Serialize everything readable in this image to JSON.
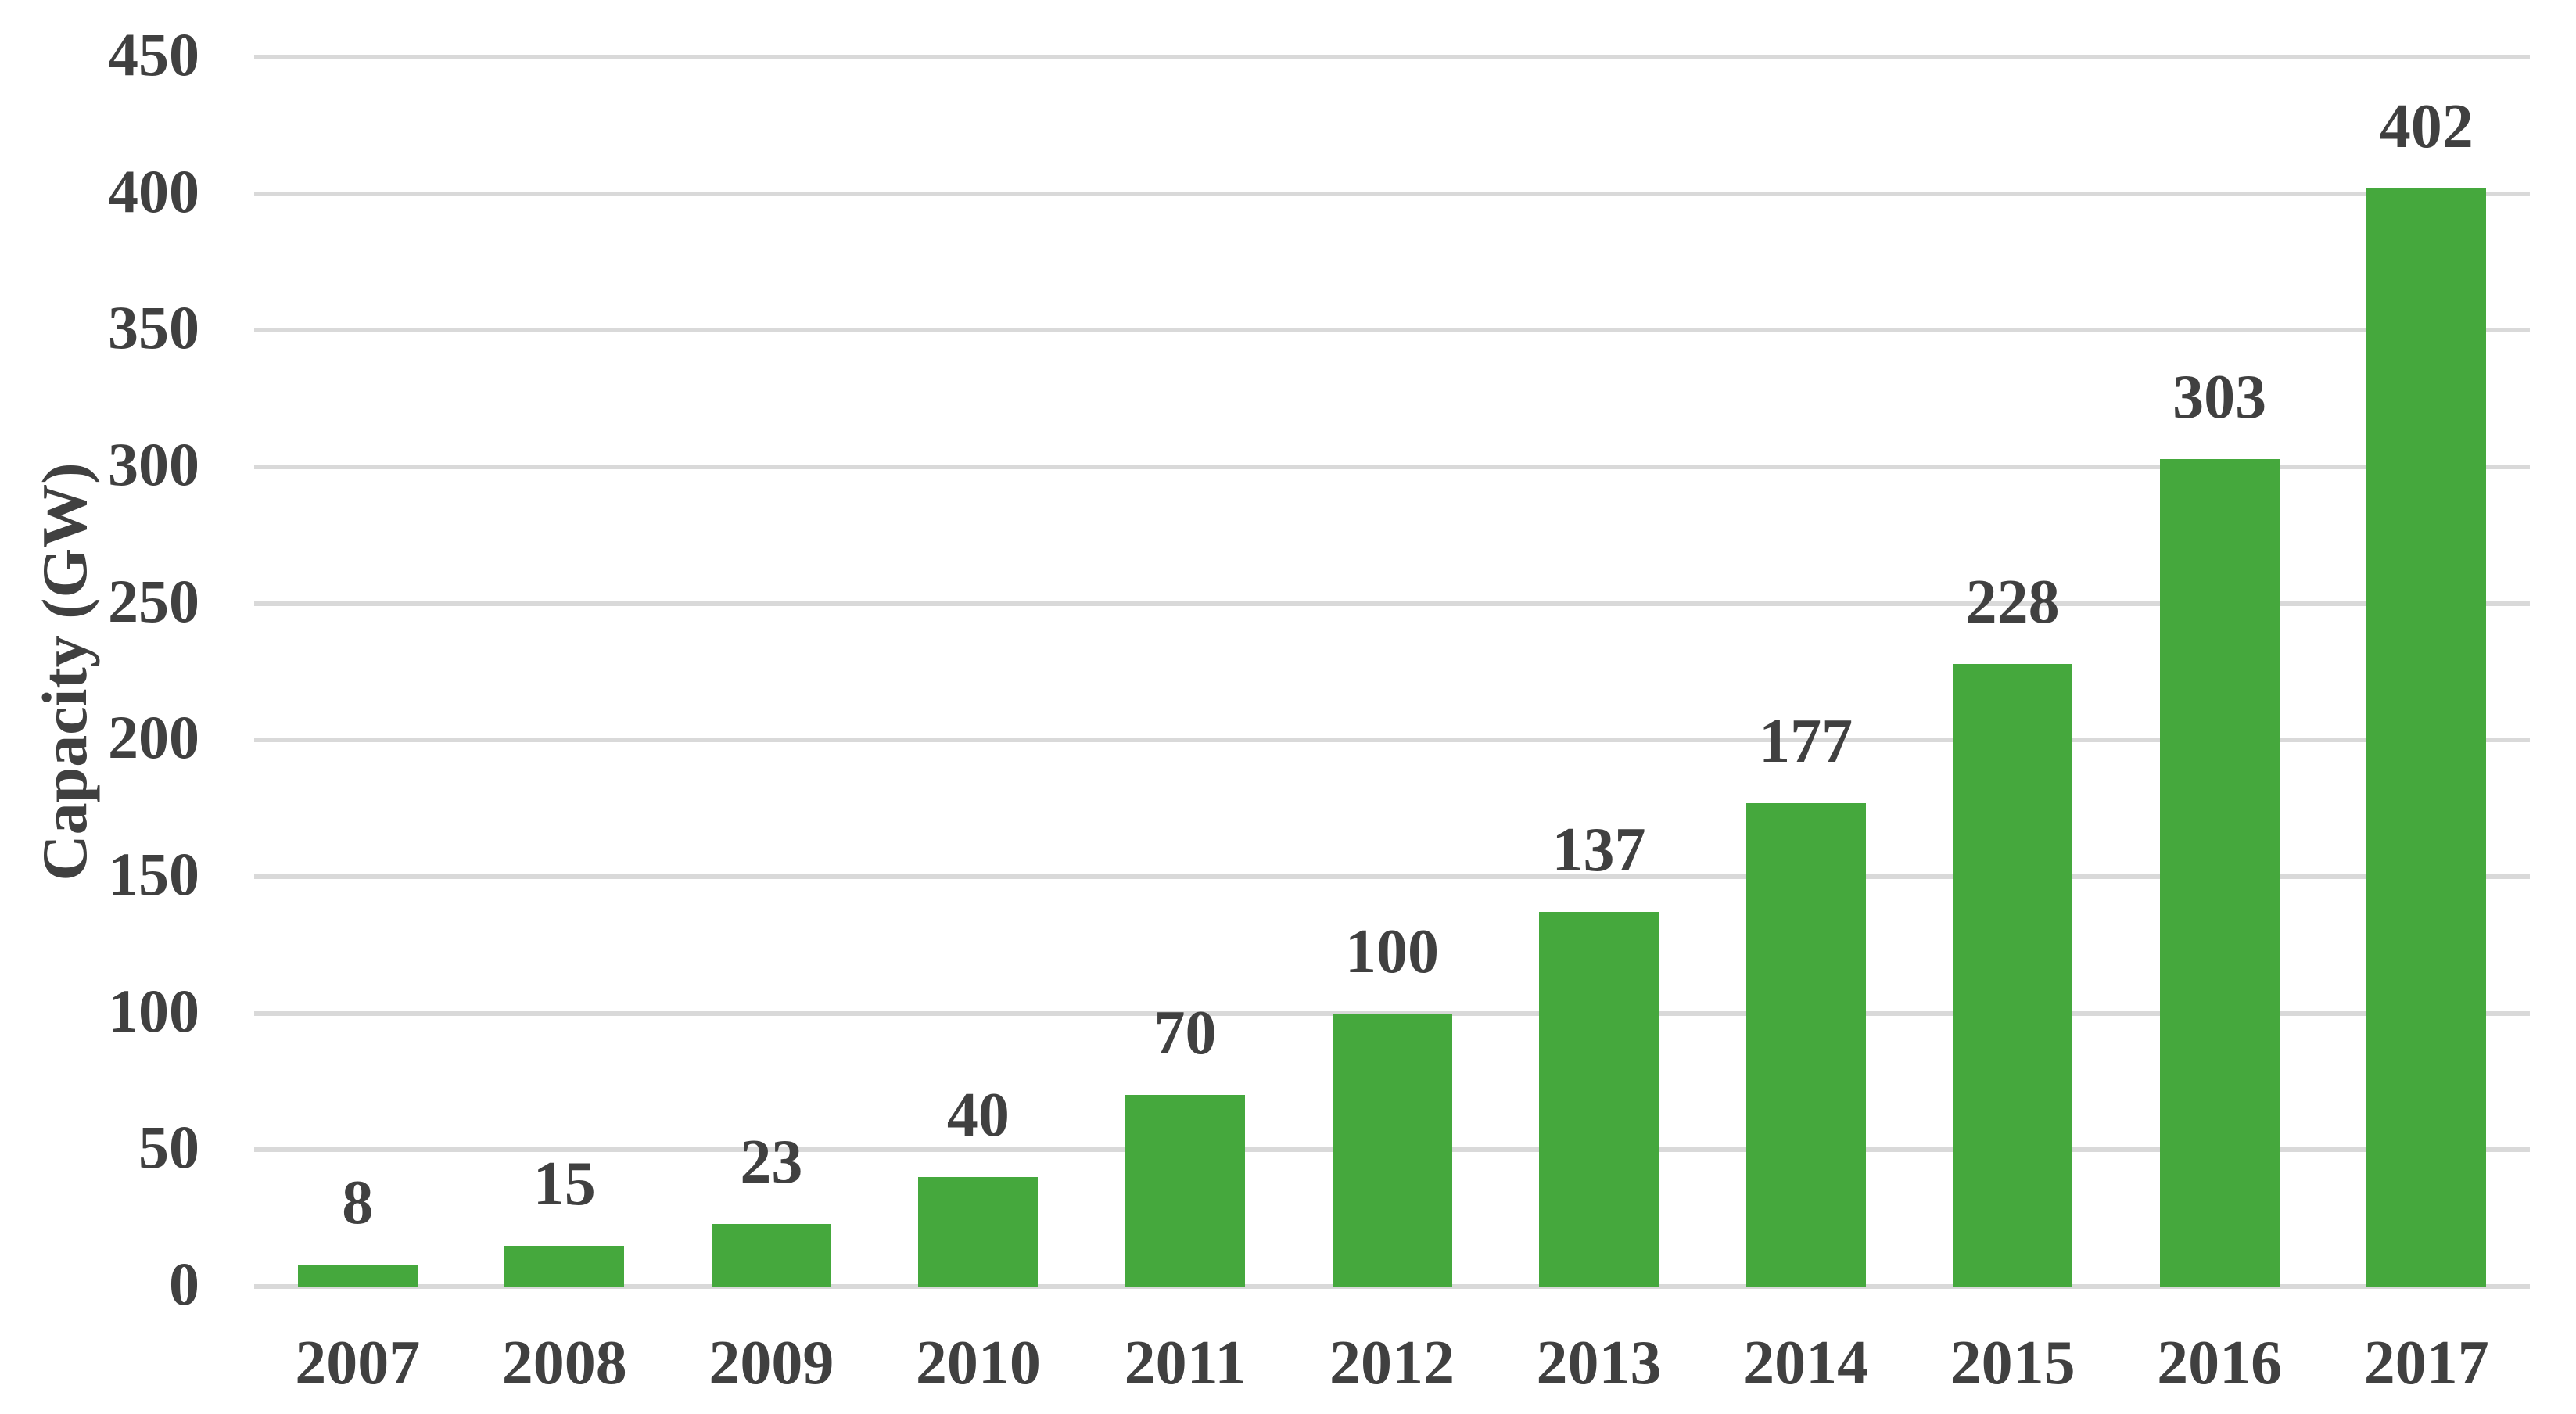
{
  "chart_data": {
    "type": "bar",
    "title": "",
    "xlabel": "",
    "ylabel": "Capacity (GW)",
    "categories": [
      "2007",
      "2008",
      "2009",
      "2010",
      "2011",
      "2012",
      "2013",
      "2014",
      "2015",
      "2016",
      "2017"
    ],
    "values": [
      8,
      15,
      23,
      40,
      70,
      100,
      137,
      177,
      228,
      303,
      402
    ],
    "value_labels": [
      "8",
      "15",
      "23",
      "40",
      "70",
      "100",
      "137",
      "177",
      "228",
      "303",
      "402"
    ],
    "y_ticks": [
      0,
      50,
      100,
      150,
      200,
      250,
      300,
      350,
      400,
      450
    ],
    "ylim": [
      0,
      450
    ],
    "grid": true,
    "legend": "none",
    "bar_color": "#45a83d",
    "grid_color": "#d9d9d9",
    "text_color": "#404040"
  }
}
